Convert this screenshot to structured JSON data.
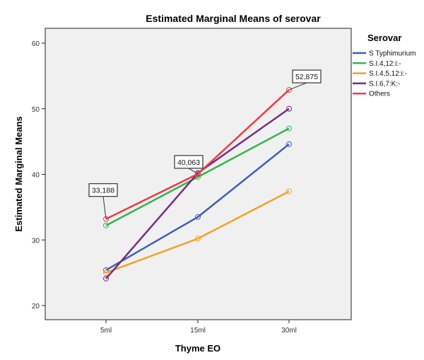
{
  "chart_data": {
    "type": "line",
    "title": "Estimated Marginal Means of serovar",
    "xlabel": "Thyme EO",
    "ylabel": "Estimated Marginal Means",
    "categories": [
      "5ml",
      "15ml",
      "30ml"
    ],
    "ylim": [
      18,
      62
    ],
    "yticks": [
      "20",
      "30",
      "40",
      "50",
      "60"
    ],
    "grid": false,
    "legend": {
      "title": "Serovar",
      "placement": "right"
    },
    "series": [
      {
        "name": "S Typhimurium",
        "color": "#3f5fb4",
        "values": [
          25.4,
          33.5,
          44.6
        ]
      },
      {
        "name": "S.I.4,12:i:-",
        "color": "#35b64a",
        "values": [
          32.2,
          39.6,
          47.0
        ]
      },
      {
        "name": "S.I.4,5,12:i:-",
        "color": "#f7a023",
        "values": [
          25.0,
          30.2,
          37.4
        ]
      },
      {
        "name": "S.I.6,7:K:-",
        "color": "#7a2a84",
        "values": [
          24.1,
          40.2,
          50.0
        ]
      },
      {
        "name": "Others",
        "color": "#ef3a47",
        "values": [
          33.188,
          40.063,
          52.875
        ]
      }
    ],
    "annotations": [
      {
        "series": "Others",
        "category": "5ml",
        "text": "33,188"
      },
      {
        "series": "Others",
        "category": "15ml",
        "text": "40,063"
      },
      {
        "series": "Others",
        "category": "30ml",
        "text": "52,875"
      }
    ]
  }
}
